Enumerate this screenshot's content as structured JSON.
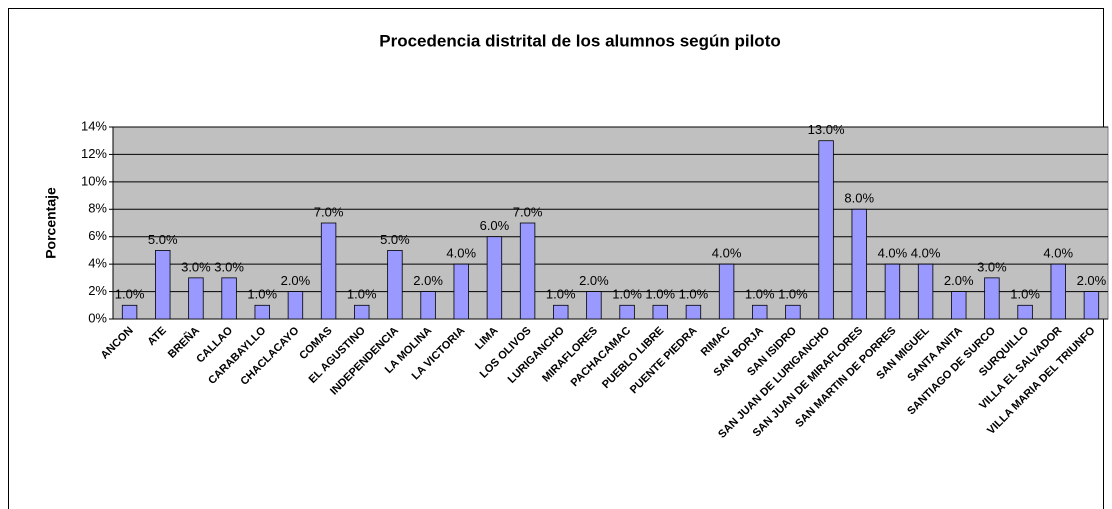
{
  "chart_data": {
    "type": "bar",
    "title": "Procedencia distrital de los alumnos según piloto",
    "y_label": "Porcentaje",
    "categories": [
      "ANCON",
      "ATE",
      "BREÑA",
      "CALLAO",
      "CARABAYLLO",
      "CHACLACAYO",
      "COMAS",
      "EL AGUSTINO",
      "INDEPENDENCIA",
      "LA MOLINA",
      "LA VICTORIA",
      "LIMA",
      "LOS OLIVOS",
      "LURIGANCHO",
      "MIRAFLORES",
      "PACHACAMAC",
      "PUEBLO LIBRE",
      "PUENTE PIEDRA",
      "RIMAC",
      "SAN BORJA",
      "SAN ISIDRO",
      "SAN JUAN DE LURIGANCHO",
      "SAN JUAN DE MIRAFLORES",
      "SAN MARTIN DE PORRES",
      "SAN MIGUEL",
      "SANTA ANITA",
      "SANTIAGO DE SURCO",
      "SURQUILLO",
      "VILLA EL SALVADOR",
      "VILLA MARIA DEL TRIUNFO"
    ],
    "values": [
      1,
      5,
      3,
      3,
      1,
      2,
      7,
      1,
      5,
      2,
      4,
      6,
      7,
      1,
      2,
      1,
      1,
      1,
      4,
      1,
      1,
      13,
      8,
      4,
      4,
      2,
      3,
      1,
      4,
      2
    ],
    "value_labels": [
      "1.0%",
      "5.0%",
      "3.0%",
      "3.0%",
      "1.0%",
      "2.0%",
      "7.0%",
      "1.0%",
      "5.0%",
      "2.0%",
      "4.0%",
      "6.0%",
      "7.0%",
      "1.0%",
      "2.0%",
      "1.0%",
      "1.0%",
      "1.0%",
      "4.0%",
      "1.0%",
      "1.0%",
      "13.0%",
      "8.0%",
      "4.0%",
      "4.0%",
      "2.0%",
      "3.0%",
      "1.0%",
      "4.0%",
      "2.0%"
    ],
    "color": "#9999ff",
    "ylim": [
      0,
      14
    ],
    "yticks": [
      {
        "value": 0,
        "label": "0%"
      },
      {
        "value": 2,
        "label": "2%"
      },
      {
        "value": 4,
        "label": "4%"
      },
      {
        "value": 6,
        "label": "6%"
      },
      {
        "value": 8,
        "label": "8%"
      },
      {
        "value": 10,
        "label": "10%"
      },
      {
        "value": 12,
        "label": "12%"
      },
      {
        "value": 14,
        "label": "14%"
      }
    ],
    "grid": true
  }
}
